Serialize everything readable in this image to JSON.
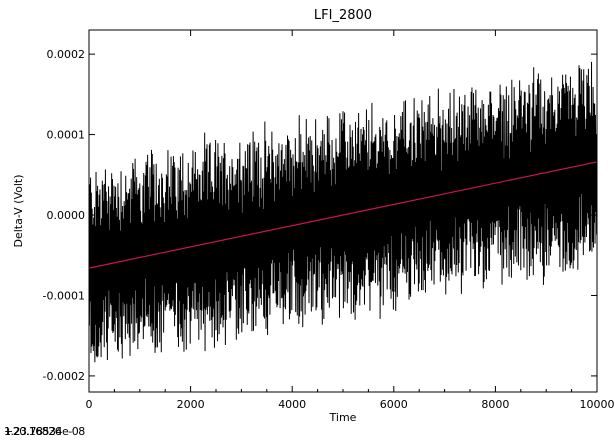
{
  "chart_data": {
    "type": "line",
    "title": "LFI_2800",
    "xlabel": "Time",
    "ylabel": "Delta-V (Volt)",
    "xlim": [
      0,
      10000
    ],
    "ylim": [
      -0.00022,
      0.00023
    ],
    "x_ticks": [
      0,
      2000,
      4000,
      6000,
      8000,
      10000
    ],
    "x_tick_labels": [
      "0",
      "2000",
      "4000",
      "6000",
      "8000",
      "10000"
    ],
    "y_ticks": [
      -0.0002,
      -0.0001,
      0.0,
      0.0001,
      0.0002
    ],
    "y_tick_labels": [
      "-0.0002",
      "-0.0001",
      "0.0000",
      "0.0001",
      "0.0002"
    ],
    "grid": false,
    "series": [
      {
        "kind": "signal",
        "color": "#000000",
        "description_values": "dense oscillating trace, approx ±0.0001 around a rising trend",
        "start_value": -6.5e-05,
        "end_value": 6.5e-05,
        "amplitude": 0.0001
      },
      {
        "kind": "linear-fit",
        "color": "#c8174a",
        "x": [
          0,
          10000
        ],
        "y": [
          -6.6e-05,
          6.6e-05
        ]
      }
    ]
  },
  "footer": {
    "overlap_a": "1.23.78534e-08",
    "overlap_b": "+20.16826"
  }
}
